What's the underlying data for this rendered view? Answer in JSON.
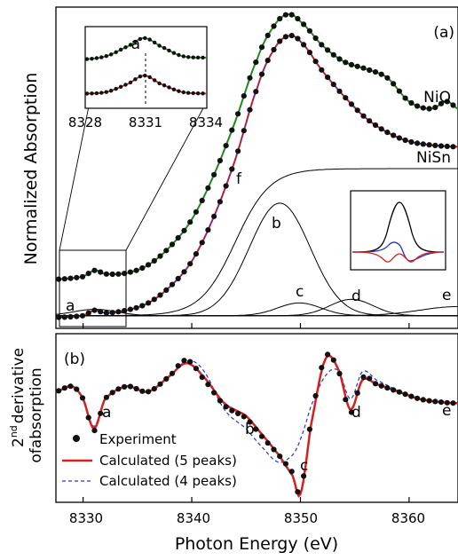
{
  "panels": {
    "a": "(a)",
    "b": "(b)"
  },
  "axes": {
    "xlabel": "Photon Energy (eV)",
    "ylabel_a": "Normalized Absorption",
    "ylabel_b_sup": "nd",
    "ylabel_b_pre": "2",
    "ylabel_b_rest": "derivative",
    "ylabel_b_line2": "ofabsorption",
    "xticks": [
      "8330",
      "8340",
      "8350",
      "8360"
    ]
  },
  "colors": {
    "nio": "#1f8a1f",
    "nisn": "#d62020",
    "calc4": "#2233dd",
    "exp": "#111111",
    "peak": "#000000"
  },
  "chart_data": [
    {
      "type": "line",
      "panel": "(a)",
      "xlabel": "Photon Energy (eV)",
      "ylabel": "Normalized Absorption",
      "xlim": [
        8327.5,
        8364.5
      ],
      "ylim": [
        -0.05,
        1.72
      ],
      "curve_labels": {
        "nio": "NiO",
        "nisn": "NiSn"
      },
      "series": [
        {
          "name": "NiO",
          "x": [
            8327.5,
            8330,
            8331.1,
            8332,
            8334,
            8336,
            8338,
            8340,
            8342,
            8344,
            8346,
            8347.5,
            8348.8,
            8350,
            8352,
            8354,
            8356,
            8358,
            8360,
            8362,
            8363.5,
            8364.5
          ],
          "y": [
            0.22,
            0.235,
            0.27,
            0.25,
            0.255,
            0.3,
            0.4,
            0.55,
            0.79,
            1.09,
            1.43,
            1.61,
            1.68,
            1.64,
            1.51,
            1.42,
            1.38,
            1.33,
            1.2,
            1.16,
            1.2,
            1.16
          ]
        },
        {
          "name": "NiSn",
          "x": [
            8327.5,
            8330,
            8331.1,
            8332,
            8334,
            8336,
            8338,
            8340,
            8342,
            8344,
            8346,
            8347.5,
            8348.8,
            8350,
            8352,
            8354,
            8356,
            8358,
            8360,
            8362,
            8364.5
          ],
          "y": [
            0.01,
            0.02,
            0.05,
            0.035,
            0.05,
            0.09,
            0.18,
            0.32,
            0.56,
            0.88,
            1.27,
            1.48,
            1.56,
            1.53,
            1.37,
            1.23,
            1.11,
            1.03,
            0.98,
            0.96,
            0.95
          ]
        }
      ],
      "peaks": [
        {
          "label": "a",
          "center": 8331.1,
          "height": 0.035
        },
        {
          "label": "b",
          "center": 8348.1,
          "height": 0.62
        },
        {
          "label": "c",
          "center": 8349.9,
          "height": 0.07
        },
        {
          "label": "d",
          "center": 8354.7,
          "height": 0.09
        },
        {
          "label": "e",
          "center": 8364.5,
          "height": 0.05
        },
        {
          "label": "f",
          "edge": 8344.0,
          "plateau": 0.81
        }
      ]
    },
    {
      "type": "line",
      "panel": "inset",
      "xlim": [
        8327.8,
        8334.6
      ],
      "xticks": [
        "8328",
        "8331",
        "8334"
      ],
      "peak_label": "a",
      "peak_center": 8331.1,
      "series": [
        {
          "name": "NiO",
          "x": [
            8327.8,
            8329,
            8330.2,
            8331.1,
            8332,
            8333.2,
            8334.6
          ],
          "y": [
            0.6,
            0.64,
            0.76,
            0.86,
            0.76,
            0.64,
            0.62
          ]
        },
        {
          "name": "NiSn",
          "x": [
            8327.8,
            8329,
            8330.2,
            8331.1,
            8332,
            8333.2,
            8334.6
          ],
          "y": [
            0.18,
            0.2,
            0.3,
            0.4,
            0.3,
            0.2,
            0.18
          ]
        }
      ]
    },
    {
      "type": "line",
      "panel": "(b)",
      "xlabel": "Photon Energy (eV)",
      "ylabel": "2nd derivative ofabsorption",
      "xlim": [
        8327.5,
        8364.5
      ],
      "ylim": [
        -1.0,
        0.6
      ],
      "series": [
        {
          "name": "Experiment",
          "x": [
            8327.5,
            8329,
            8330,
            8331,
            8332,
            8334,
            8336,
            8338,
            8339.5,
            8341,
            8343,
            8345,
            8346.5,
            8348,
            8349.3,
            8350,
            8351,
            8352.3,
            8353.5,
            8354.6,
            8355.7,
            8357,
            8359,
            8361,
            8363,
            8364.5
          ],
          "y": [
            0.05,
            0.1,
            -0.02,
            -0.32,
            -0.02,
            0.1,
            0.05,
            0.2,
            0.35,
            0.18,
            -0.08,
            -0.2,
            -0.38,
            -0.55,
            -0.72,
            -0.9,
            -0.2,
            0.38,
            0.25,
            -0.15,
            0.18,
            0.12,
            0.05,
            -0.02,
            -0.05,
            -0.06
          ]
        },
        {
          "name": "Calculated (5 peaks)",
          "x": [
            8327.5,
            8329,
            8330,
            8331,
            8332,
            8334,
            8336,
            8338,
            8339.5,
            8341,
            8343,
            8345,
            8346.5,
            8348,
            8349.3,
            8350,
            8351,
            8352.3,
            8353.5,
            8354.6,
            8355.7,
            8357,
            8359,
            8361,
            8363,
            8364.5
          ],
          "y": [
            0.05,
            0.1,
            -0.02,
            -0.3,
            -0.02,
            0.1,
            0.05,
            0.2,
            0.32,
            0.2,
            -0.06,
            -0.18,
            -0.36,
            -0.55,
            -0.75,
            -0.92,
            -0.25,
            0.36,
            0.26,
            -0.12,
            0.16,
            0.12,
            0.05,
            -0.02,
            -0.05,
            -0.06
          ]
        },
        {
          "name": "Calculated (4 peaks)",
          "x": [
            8327.5,
            8329,
            8330,
            8331,
            8332,
            8334,
            8336,
            8338,
            8339.5,
            8341,
            8343,
            8345,
            8346.5,
            8348,
            8349.3,
            8350,
            8351,
            8352.3,
            8353.5,
            8354.6,
            8355.7,
            8357,
            8359,
            8361,
            8363,
            8364.5
          ],
          "y": [
            0.05,
            0.1,
            -0.02,
            -0.28,
            -0.02,
            0.1,
            0.05,
            0.2,
            0.34,
            0.26,
            -0.12,
            -0.3,
            -0.48,
            -0.62,
            -0.55,
            -0.4,
            -0.08,
            0.2,
            0.25,
            -0.02,
            0.24,
            0.16,
            0.06,
            -0.02,
            -0.05,
            -0.06
          ]
        }
      ],
      "point_labels": [
        "a",
        "b",
        "c",
        "d",
        "e"
      ]
    }
  ],
  "legend": {
    "experiment": "Experiment",
    "calc5": "Calculated (5 peaks)",
    "calc4": "Calculated (4 peaks)"
  }
}
